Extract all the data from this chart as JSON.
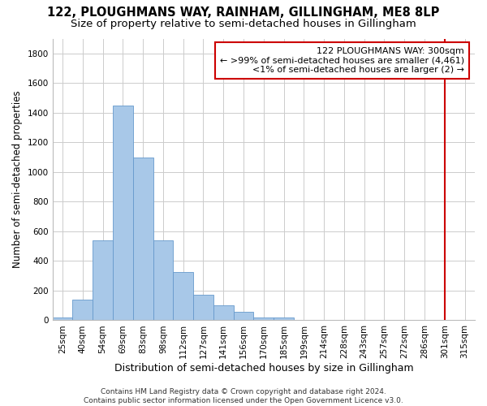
{
  "title1": "122, PLOUGHMANS WAY, RAINHAM, GILLINGHAM, ME8 8LP",
  "title2": "Size of property relative to semi-detached houses in Gillingham",
  "xlabel": "Distribution of semi-detached houses by size in Gillingham",
  "ylabel": "Number of semi-detached properties",
  "categories": [
    "25sqm",
    "40sqm",
    "54sqm",
    "69sqm",
    "83sqm",
    "98sqm",
    "112sqm",
    "127sqm",
    "141sqm",
    "156sqm",
    "170sqm",
    "185sqm",
    "199sqm",
    "214sqm",
    "228sqm",
    "243sqm",
    "257sqm",
    "272sqm",
    "286sqm",
    "301sqm",
    "315sqm"
  ],
  "values": [
    20,
    140,
    540,
    1450,
    1100,
    540,
    325,
    175,
    100,
    55,
    20,
    20,
    0,
    0,
    0,
    0,
    0,
    0,
    0,
    0,
    0
  ],
  "bar_color": "#a8c8e8",
  "bar_edge_color": "#6699cc",
  "vline_x_index": 19,
  "vline_color": "#cc0000",
  "annotation_text": "122 PLOUGHMANS WAY: 300sqm\n← >99% of semi-detached houses are smaller (4,461)\n<1% of semi-detached houses are larger (2) →",
  "annotation_box_facecolor": "#ffffff",
  "annotation_box_edge": "#cc0000",
  "ylim": [
    0,
    1900
  ],
  "yticks": [
    0,
    200,
    400,
    600,
    800,
    1000,
    1200,
    1400,
    1600,
    1800
  ],
  "grid_color": "#cccccc",
  "bg_color": "#ffffff",
  "footer": "Contains HM Land Registry data © Crown copyright and database right 2024.\nContains public sector information licensed under the Open Government Licence v3.0.",
  "title1_fontsize": 10.5,
  "title2_fontsize": 9.5,
  "xlabel_fontsize": 9,
  "ylabel_fontsize": 8.5,
  "tick_fontsize": 7.5,
  "annot_fontsize": 8,
  "footer_fontsize": 6.5
}
